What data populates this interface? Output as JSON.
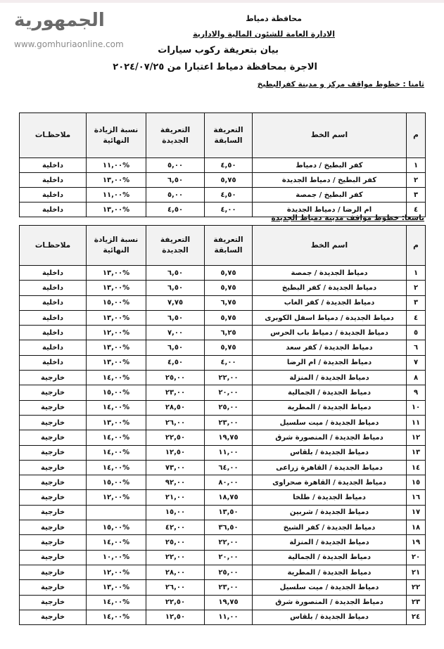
{
  "header": {
    "governorate": "محافظة دمياط",
    "department": "الادارة العامة للشئون المالية والادارية",
    "title": "بيان بتعريفة ركوب  سيارات",
    "subtitle": "الاجرة بمحافظة دمياط اعتبارا من ٢٠٢٤/٠٧/٢٥"
  },
  "columns": {
    "no": "م",
    "name": "اسم الخط",
    "prev": "التعريفة السابقة",
    "new": "التعريفة الجديدة",
    "pct": "نسبة الزيادة النهائية",
    "note": "ملاحظـات"
  },
  "section8": {
    "title": "ثامنا : خطوط مواقف مركز و مدينة كفرالبطيخ",
    "rows": [
      {
        "no": "١",
        "name": "كفر البطيخ  / دمياط",
        "prev": "٤,٥٠",
        "new": "٥,٠٠",
        "pct": "%١١,٠٠",
        "note": "داخلية"
      },
      {
        "no": "٢",
        "name": "كفر البطيخ  / دمياط الجديدة",
        "prev": "٥,٧٥",
        "new": "٦,٥٠",
        "pct": "%١٣,٠٠",
        "note": "داخلية"
      },
      {
        "no": "٣",
        "name": "كفر البطيخ / جمصة",
        "prev": "٤,٥٠",
        "new": "٥,٠٠",
        "pct": "%١١,٠٠",
        "note": "داخلية"
      },
      {
        "no": "٤",
        "name": "ام الرضا / دمياط الجديدة",
        "prev": "٤,٠٠",
        "new": "٤,٥٠",
        "pct": "%١٣,٠٠",
        "note": "داخلية"
      }
    ]
  },
  "section9": {
    "title": "تاسعا: خطوط مواقف مدينة دمياط الجديدة",
    "rows": [
      {
        "no": "١",
        "name": "دمياط الجديدة / جمصة",
        "prev": "٥,٧٥",
        "new": "٦,٥٠",
        "pct": "%١٣,٠٠",
        "note": "داخلية"
      },
      {
        "no": "٢",
        "name": "دمياط الجديدة / كفر البطيخ",
        "prev": "٥,٧٥",
        "new": "٦,٥٠",
        "pct": "%١٣,٠٠",
        "note": "داخلية"
      },
      {
        "no": "٣",
        "name": "دمياط الجديدة /  كفر الغاب",
        "prev": "٦,٧٥",
        "new": "٧,٧٥",
        "pct": "%١٥,٠٠",
        "note": "داخلية"
      },
      {
        "no": "٤",
        "name": "دمياط الجديدة / دمياط اسفل الكوبرى",
        "prev": "٥,٧٥",
        "new": "٦,٥٠",
        "pct": "%١٣,٠٠",
        "note": "داخلية"
      },
      {
        "no": "٥",
        "name": "دمياط الجديدة /  دمياط باب الحرس",
        "prev": "٦,٢٥",
        "new": "٧,٠٠",
        "pct": "%١٢,٠٠",
        "note": "داخلية"
      },
      {
        "no": "٦",
        "name": "دمياط الجديدة /  كفر سعد",
        "prev": "٥,٧٥",
        "new": "٦,٥٠",
        "pct": "%١٣,٠٠",
        "note": "داخلية"
      },
      {
        "no": "٧",
        "name": "دمياط الجديدة /  ام الرضا",
        "prev": "٤,٠٠",
        "new": "٤,٥٠",
        "pct": "%١٣,٠٠",
        "note": "داخلية"
      },
      {
        "no": "٨",
        "name": "دمياط الجديدة / المنزلة",
        "prev": "٢٢,٠٠",
        "new": "٢٥,٠٠",
        "pct": "%١٤,٠٠",
        "note": "خارجية"
      },
      {
        "no": "٩",
        "name": "دمياط الجديدة / الجمالية",
        "prev": "٢٠,٠٠",
        "new": "٢٣,٠٠",
        "pct": "%١٥,٠٠",
        "note": "خارجية"
      },
      {
        "no": "١٠",
        "name": "دمياط الجديدة / المطرية",
        "prev": "٢٥,٠٠",
        "new": "٢٨,٥٠",
        "pct": "%١٤,٠٠",
        "note": "خارجية"
      },
      {
        "no": "١١",
        "name": "دمياط الجديدة / ميت سلسيل",
        "prev": "٢٣,٠٠",
        "new": "٢٦,٠٠",
        "pct": "%١٣,٠٠",
        "note": "خارجية"
      },
      {
        "no": "١٢",
        "name": "دمياط الجديدة / المنصورة شرق",
        "prev": "١٩,٧٥",
        "new": "٢٢,٥٠",
        "pct": "%١٤,٠٠",
        "note": "خارجية"
      },
      {
        "no": "١٣",
        "name": "دمياط الجديدة / بلقاس",
        "prev": "١١,٠٠",
        "new": "١٢,٥٠",
        "pct": "%١٤,٠٠",
        "note": "خارجية"
      },
      {
        "no": "١٤",
        "name": "دمياط الجديدة / القاهرة زراعى",
        "prev": "٦٤,٠٠",
        "new": "٧٣,٠٠",
        "pct": "%١٤,٠٠",
        "note": "خارجية"
      },
      {
        "no": "١٥",
        "name": "دمياط الجديدة / القاهرة  صحراوى",
        "prev": "٨٠,٠٠",
        "new": "٩٢,٠٠",
        "pct": "%١٥,٠٠",
        "note": "خارجية"
      },
      {
        "no": "١٦",
        "name": "دمياط الجديدة / طلخا",
        "prev": "١٨,٧٥",
        "new": "٢١,٠٠",
        "pct": "%١٢,٠٠",
        "note": "خارجية"
      },
      {
        "no": "١٧",
        "name": "دمياط الجديدة / شربين",
        "prev": "١٣,٥٠",
        "new": "١٥,٠٠",
        "pct": "",
        "note": "خارجية"
      },
      {
        "no": "١٨",
        "name": "دمياط الجديدة / كفر الشيخ",
        "prev": "٣٦,٥٠",
        "new": "٤٢,٠٠",
        "pct": "%١٥,٠٠",
        "note": "خارجية"
      },
      {
        "no": "١٩",
        "name": "دمياط الجديدة / المنزلة",
        "prev": "٢٢,٠٠",
        "new": "٢٥,٠٠",
        "pct": "%١٤,٠٠",
        "note": "خارجية"
      },
      {
        "no": "٢٠",
        "name": "دمياط الجديدة / الجمالية",
        "prev": "٢٠,٠٠",
        "new": "٢٢,٠٠",
        "pct": "%١٠,٠٠",
        "note": "خارجية"
      },
      {
        "no": "٢١",
        "name": "دمياط الجديدة / المطرية",
        "prev": "٢٥,٠٠",
        "new": "٢٨,٠٠",
        "pct": "%١٢,٠٠",
        "note": "خارجية"
      },
      {
        "no": "٢٢",
        "name": "دمياط الجديدة / ميت سلسيل",
        "prev": "٢٣,٠٠",
        "new": "٢٦,٠٠",
        "pct": "%١٣,٠٠",
        "note": "خارجية"
      },
      {
        "no": "٢٣",
        "name": "دمياط الجديدة / المنصورة شرق",
        "prev": "١٩,٧٥",
        "new": "٢٢,٥٠",
        "pct": "%١٤,٠٠",
        "note": "خارجية"
      },
      {
        "no": "٢٤",
        "name": "دمياط الجديدة / بلقاس",
        "prev": "١١,٠٠",
        "new": "١٢,٥٠",
        "pct": "%١٤,٠٠",
        "note": "خارجية"
      }
    ]
  },
  "watermark": {
    "logo": "الجمهورية",
    "site": "www.gomhuriaonline.com"
  }
}
